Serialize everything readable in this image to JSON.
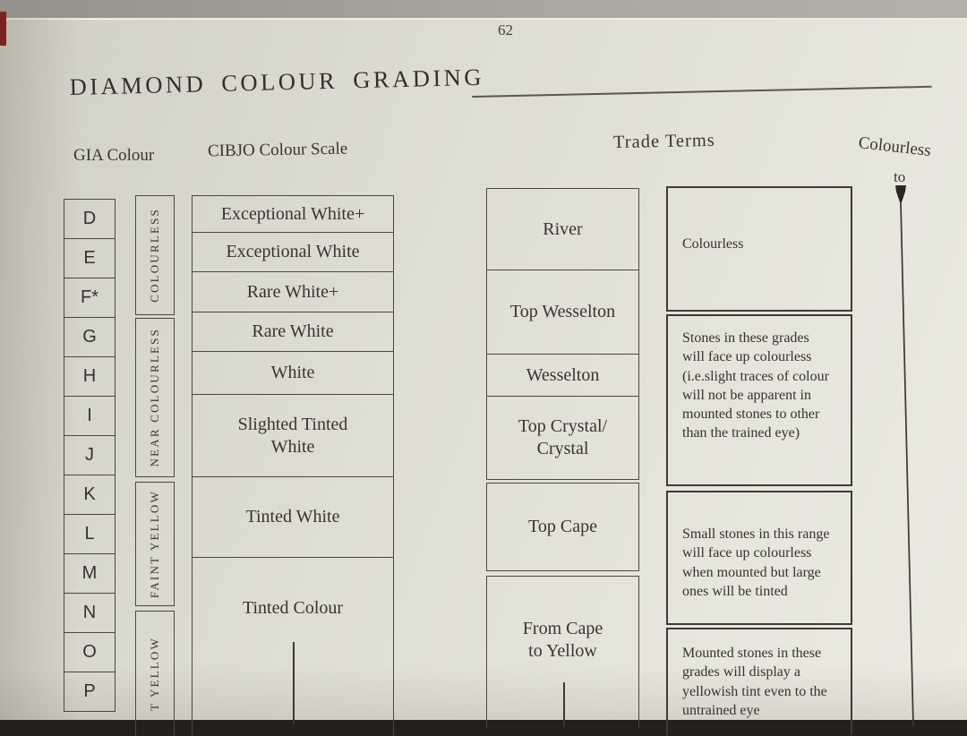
{
  "page": {
    "number": "62",
    "title": "DIAMOND COLOUR GRADING"
  },
  "headers": {
    "gia": "GIA Colour",
    "cibjo": "CIBJO Colour Scale",
    "trade": "Trade Terms",
    "scale_label_top": "Colourless",
    "scale_label_to": "to"
  },
  "gia_grades": [
    "D",
    "E",
    "F*",
    "G",
    "H",
    "I",
    "J",
    "K",
    "L",
    "M",
    "N",
    "O",
    "P"
  ],
  "gia_groups": [
    "COLOURLESS",
    "NEAR COLOURLESS",
    "FAINT YELLOW",
    "T YELLOW"
  ],
  "cibjo_scale": [
    "Exceptional White+",
    "Exceptional White",
    "Rare White+",
    "Rare White",
    "White",
    "Slighted Tinted\nWhite",
    "Tinted White",
    "Tinted Colour"
  ],
  "trade_terms": [
    "River",
    "Top Wesselton",
    "Wesselton",
    "Top Crystal/\nCrystal",
    "Top Cape",
    "From Cape\nto Yellow"
  ],
  "descriptions": [
    "Colourless",
    "Stones in these grades\nwill face up colourless\n(i.e.slight traces of colour\nwill not be apparent in\nmounted stones to other\nthan the trained eye)",
    "Small stones in this range\nwill face up colourless\nwhen mounted but large\nones will be tinted",
    "Mounted stones in these\ngrades will display a\nyellowish tint even to the\nuntrained eye"
  ],
  "colors": {
    "page": "#deddd1",
    "ink": "#3a372f",
    "line": "#4a473f",
    "spine_red": "#7b241d"
  }
}
